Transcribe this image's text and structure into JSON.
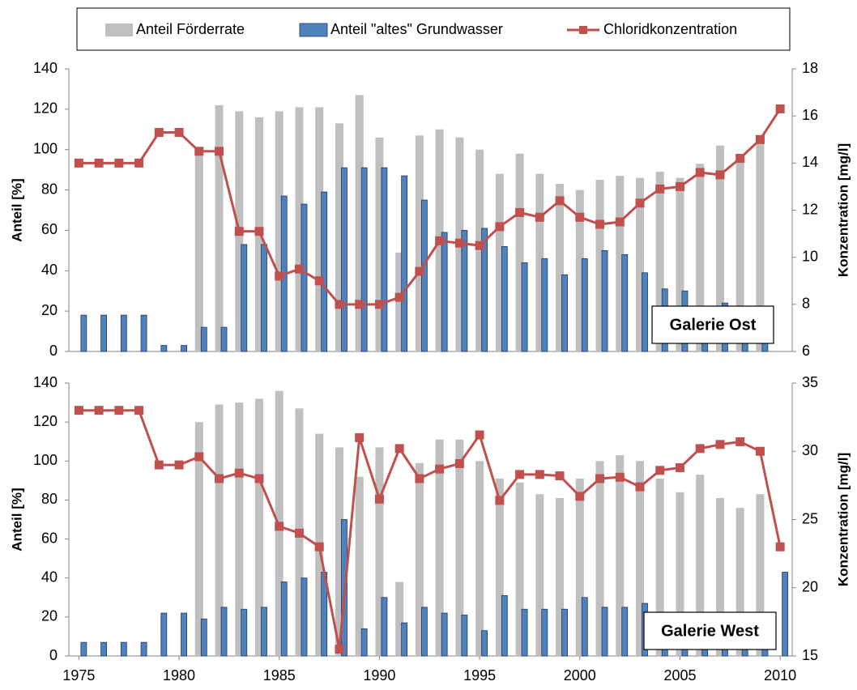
{
  "chart_data": [
    {
      "type": "combo",
      "x": [
        1975,
        1976,
        1977,
        1978,
        1979,
        1980,
        1981,
        1982,
        1983,
        1984,
        1985,
        1986,
        1987,
        1988,
        1989,
        1990,
        1991,
        1992,
        1993,
        1994,
        1995,
        1996,
        1997,
        1998,
        1999,
        2000,
        2001,
        2002,
        2003,
        2004,
        2005,
        2006,
        2007,
        2008,
        2009,
        2010
      ],
      "xlim": [
        1974.5,
        2010.6
      ],
      "ylabel": "Anteil [%]",
      "y2label": "Konzentration [mg/l]",
      "ylim": [
        0,
        140
      ],
      "yticks": [
        0,
        20,
        40,
        60,
        80,
        100,
        120,
        140
      ],
      "y2lim": [
        6,
        18
      ],
      "y2ticks": [
        6,
        8,
        10,
        12,
        14,
        16,
        18
      ],
      "annotation": "Galerie Ost",
      "series": [
        {
          "name": "Anteil Förderrate",
          "type": "bar",
          "color": "#bfbfbf",
          "values": [
            null,
            null,
            null,
            null,
            null,
            null,
            100,
            122,
            119,
            116,
            119,
            121,
            121,
            113,
            127,
            106,
            49,
            107,
            110,
            106,
            100,
            88,
            98,
            88,
            83,
            80,
            85,
            87,
            86,
            89,
            86,
            93,
            102,
            97,
            103,
            null
          ]
        },
        {
          "name": "Anteil \"altes\" Grundwasser",
          "type": "bar",
          "color": "#4f81bd",
          "values": [
            18,
            18,
            18,
            18,
            3,
            3,
            12,
            12,
            53,
            53,
            77,
            73,
            79,
            91,
            91,
            91,
            87,
            75,
            59,
            60,
            61,
            52,
            44,
            46,
            38,
            46,
            50,
            48,
            39,
            31,
            30,
            22,
            24,
            15,
            12,
            null
          ]
        },
        {
          "name": "Chloridkonzentration",
          "type": "line",
          "axis": "y2",
          "color": "#c0504d",
          "values": [
            14.0,
            14.0,
            14.0,
            14.0,
            15.3,
            15.3,
            14.5,
            14.5,
            11.1,
            11.1,
            9.2,
            9.5,
            9.0,
            8.0,
            8.0,
            8.0,
            8.3,
            9.4,
            10.7,
            10.6,
            10.5,
            11.3,
            11.9,
            11.7,
            12.4,
            11.7,
            11.4,
            11.5,
            12.3,
            12.9,
            13.0,
            13.6,
            13.5,
            14.2,
            15.0,
            16.3
          ]
        }
      ]
    },
    {
      "type": "combo",
      "x": [
        1975,
        1976,
        1977,
        1978,
        1979,
        1980,
        1981,
        1982,
        1983,
        1984,
        1985,
        1986,
        1987,
        1988,
        1989,
        1990,
        1991,
        1992,
        1993,
        1994,
        1995,
        1996,
        1997,
        1998,
        1999,
        2000,
        2001,
        2002,
        2003,
        2004,
        2005,
        2006,
        2007,
        2008,
        2009,
        2010
      ],
      "xlim": [
        1974.5,
        2010.6
      ],
      "xticks": [
        1975,
        1980,
        1985,
        1990,
        1995,
        2000,
        2005,
        2010
      ],
      "ylabel": "Anteil [%]",
      "y2label": "Konzentration [mg/l]",
      "ylim": [
        0,
        140
      ],
      "yticks": [
        0,
        20,
        40,
        60,
        80,
        100,
        120,
        140
      ],
      "y2lim": [
        15,
        35
      ],
      "y2ticks": [
        15,
        20,
        25,
        30,
        35
      ],
      "annotation": "Galerie West",
      "series": [
        {
          "type": "bar",
          "color": "#bfbfbf",
          "values": [
            null,
            null,
            null,
            null,
            null,
            null,
            120,
            129,
            130,
            132,
            136,
            127,
            114,
            107,
            92,
            107,
            38,
            99,
            111,
            111,
            100,
            91,
            89,
            83,
            81,
            91,
            100,
            103,
            100,
            91,
            84,
            93,
            81,
            76,
            83,
            null
          ]
        },
        {
          "type": "bar",
          "color": "#4f81bd",
          "values": [
            7,
            7,
            7,
            7,
            22,
            22,
            19,
            25,
            24,
            25,
            38,
            40,
            43,
            70,
            14,
            30,
            17,
            25,
            22,
            21,
            13,
            31,
            24,
            24,
            24,
            30,
            25,
            25,
            27,
            22,
            22,
            20,
            20,
            20,
            20,
            43
          ]
        },
        {
          "type": "line",
          "axis": "y2",
          "color": "#c0504d",
          "values": [
            33,
            33,
            33,
            33,
            29,
            29,
            29.6,
            28.0,
            28.4,
            28.0,
            24.5,
            24.0,
            23.0,
            15.5,
            31.0,
            26.5,
            30.2,
            28.0,
            28.7,
            29.1,
            31.2,
            26.4,
            28.3,
            28.3,
            28.2,
            26.7,
            28.0,
            28.1,
            27.4,
            28.6,
            28.8,
            30.2,
            30.5,
            30.7,
            30.0,
            23.0
          ]
        }
      ]
    }
  ]
}
